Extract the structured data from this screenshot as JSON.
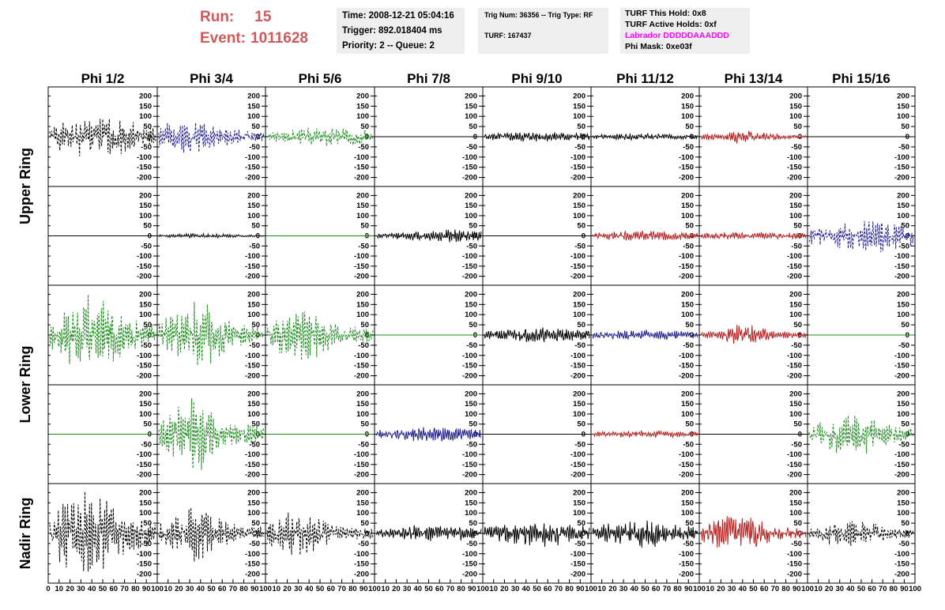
{
  "header": {
    "run_label": "Run:",
    "run_value": "15",
    "event_label": "Event:",
    "event_value": "1011628",
    "time": "Time: 2008-12-21 05:04:16",
    "trigger": "Trigger: 892.018404 ms",
    "priority": "Priority: 2 -- Queue: 2",
    "trig_num": "Trig Num: 36356 -- Trig Type: RF",
    "turf": "TURF: 167437",
    "turf_hold": "TURF This Hold: 0x8",
    "turf_active": "TURF Active Holds: 0xf",
    "labrador": "Labrador DDDDDAAADDD",
    "phi_mask": "Phi Mask: 0xe03f"
  },
  "colors": {
    "run_text": "#cc5a5a",
    "labrador_text": "#ff00ff",
    "info_box_bg": "#eeeeee",
    "black": "#000000",
    "blue": "#1f1f8f",
    "green": "#1c8a1c",
    "red": "#b42020"
  },
  "chart_data": {
    "type": "line",
    "columns": [
      "Phi 1/2",
      "Phi 3/4",
      "Phi 5/6",
      "Phi 7/8",
      "Phi 9/10",
      "Phi 11/12",
      "Phi 13/14",
      "Phi 15/16"
    ],
    "row_labels": [
      "Upper Ring",
      "Lower Ring",
      "Nadir Ring"
    ],
    "ylim": [
      -225,
      225
    ],
    "yticks": [
      -200,
      -150,
      -100,
      -50,
      0,
      50,
      100,
      150,
      200
    ],
    "xlim": [
      0,
      100
    ],
    "xticks": [
      0,
      10,
      20,
      30,
      40,
      50,
      60,
      70,
      80,
      90,
      100
    ],
    "panels": [
      [
        {
          "color": "black",
          "style": "dashed",
          "amp": 90,
          "center": 45,
          "width": 45,
          "seed": 1
        },
        {
          "color": "blue",
          "style": "dashed",
          "amp": 70,
          "center": 30,
          "width": 40,
          "seed": 2
        },
        {
          "color": "green",
          "style": "dashed",
          "amp": 45,
          "center": 60,
          "width": 45,
          "seed": 3
        },
        {
          "color": "black",
          "style": "flat",
          "amp": 0,
          "center": 50,
          "width": 50,
          "seed": 4
        },
        {
          "color": "black",
          "style": "solid",
          "amp": 22,
          "center": 50,
          "width": 60,
          "seed": 5
        },
        {
          "color": "black",
          "style": "solid",
          "amp": 14,
          "center": 50,
          "width": 60,
          "seed": 6
        },
        {
          "color": "red",
          "style": "solid",
          "amp": 30,
          "center": 38,
          "width": 30,
          "seed": 7
        },
        {
          "color": "black",
          "style": "flat",
          "amp": 0,
          "center": 50,
          "width": 50,
          "seed": 8
        }
      ],
      [
        {
          "color": "black",
          "style": "flat",
          "amp": 0,
          "center": 50,
          "width": 50,
          "seed": 9
        },
        {
          "color": "black",
          "style": "solid",
          "amp": 10,
          "center": 40,
          "width": 40,
          "seed": 10
        },
        {
          "color": "green",
          "style": "flat",
          "amp": 0,
          "center": 50,
          "width": 50,
          "seed": 11
        },
        {
          "color": "black",
          "style": "solid",
          "amp": 28,
          "center": 65,
          "width": 45,
          "seed": 12
        },
        {
          "color": "black",
          "style": "flat",
          "amp": 0,
          "center": 50,
          "width": 50,
          "seed": 13
        },
        {
          "color": "red",
          "style": "solid",
          "amp": 22,
          "center": 50,
          "width": 60,
          "seed": 14
        },
        {
          "color": "red",
          "style": "solid",
          "amp": 18,
          "center": 50,
          "width": 60,
          "seed": 15
        },
        {
          "color": "blue",
          "style": "dashed",
          "amp": 75,
          "center": 55,
          "width": 50,
          "seed": 16
        }
      ],
      [
        {
          "color": "green",
          "style": "dashed",
          "amp": 170,
          "center": 35,
          "width": 35,
          "seed": 17
        },
        {
          "color": "green",
          "style": "dashed",
          "amp": 160,
          "center": 35,
          "width": 25,
          "seed": 18
        },
        {
          "color": "green",
          "style": "dashed",
          "amp": 110,
          "center": 35,
          "width": 30,
          "seed": 19
        },
        {
          "color": "green",
          "style": "flat",
          "amp": 0,
          "center": 50,
          "width": 50,
          "seed": 20
        },
        {
          "color": "black",
          "style": "solid",
          "amp": 32,
          "center": 55,
          "width": 55,
          "seed": 21
        },
        {
          "color": "blue",
          "style": "solid",
          "amp": 22,
          "center": 50,
          "width": 55,
          "seed": 22
        },
        {
          "color": "red",
          "style": "solid",
          "amp": 55,
          "center": 42,
          "width": 18,
          "seed": 23
        },
        {
          "color": "green",
          "style": "flat",
          "amp": 0,
          "center": 50,
          "width": 50,
          "seed": 24
        }
      ],
      [
        {
          "color": "green",
          "style": "flat",
          "amp": 0,
          "center": 50,
          "width": 50,
          "seed": 25
        },
        {
          "color": "green",
          "style": "dashed",
          "amp": 170,
          "center": 32,
          "width": 22,
          "seed": 26
        },
        {
          "color": "green",
          "style": "flat",
          "amp": 0,
          "center": 50,
          "width": 50,
          "seed": 27
        },
        {
          "color": "blue",
          "style": "solid",
          "amp": 32,
          "center": 55,
          "width": 55,
          "seed": 28
        },
        {
          "color": "black",
          "style": "flat",
          "amp": 0,
          "center": 50,
          "width": 50,
          "seed": 29
        },
        {
          "color": "red",
          "style": "solid",
          "amp": 16,
          "center": 50,
          "width": 60,
          "seed": 30
        },
        {
          "color": "black",
          "style": "flat",
          "amp": 0,
          "center": 50,
          "width": 50,
          "seed": 31
        },
        {
          "color": "green",
          "style": "dashed",
          "amp": 100,
          "center": 40,
          "width": 30,
          "seed": 32
        }
      ],
      [
        {
          "color": "black",
          "style": "dashed",
          "amp": 180,
          "center": 30,
          "width": 40,
          "seed": 33
        },
        {
          "color": "black",
          "style": "dashed",
          "amp": 120,
          "center": 35,
          "width": 25,
          "seed": 34
        },
        {
          "color": "black",
          "style": "dashed",
          "amp": 95,
          "center": 28,
          "width": 30,
          "seed": 35
        },
        {
          "color": "black",
          "style": "solid",
          "amp": 38,
          "center": 55,
          "width": 50,
          "seed": 36
        },
        {
          "color": "black",
          "style": "solid",
          "amp": 58,
          "center": 55,
          "width": 50,
          "seed": 37
        },
        {
          "color": "black",
          "style": "solid",
          "amp": 60,
          "center": 45,
          "width": 45,
          "seed": 38
        },
        {
          "color": "red",
          "style": "solid",
          "amp": 95,
          "center": 35,
          "width": 25,
          "seed": 39
        },
        {
          "color": "black",
          "style": "dashed",
          "amp": 60,
          "center": 40,
          "width": 35,
          "seed": 40
        }
      ]
    ]
  }
}
